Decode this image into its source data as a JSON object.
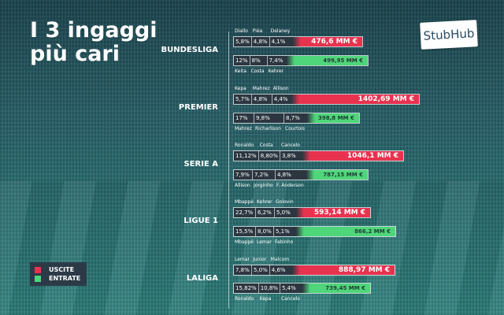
{
  "title_line1": "I 3 ingaggi",
  "title_line2": "più cari",
  "brand": "StubHub",
  "legend": {
    "out": "USCITE",
    "in": "ENTRATE",
    "out_color": "#e8334f",
    "in_color": "#4fd67a"
  },
  "leagues": [
    {
      "name": "BUNDESLIGA",
      "out": {
        "players": [
          "Diallo",
          "Piéa",
          "Delaney"
        ],
        "pcts": [
          "5,8%",
          "4,8%",
          "4,1%"
        ],
        "total": "476,6 MM €"
      },
      "in": {
        "players": [
          "Keita",
          "Costa",
          "Kehrer"
        ],
        "pcts": [
          "12%",
          "8%",
          "7,4%"
        ],
        "total": "499,95 MM €"
      }
    },
    {
      "name": "PREMIER",
      "out": {
        "players": [
          "Kepa",
          "Mahrez",
          "Allison"
        ],
        "pcts": [
          "5,7%",
          "4,8%",
          "4,4%"
        ],
        "total": "1402,69 MM €"
      },
      "in": {
        "players": [
          "Mahrez",
          "Richarlison",
          "Courtois"
        ],
        "pcts": [
          "17%",
          "9,8%",
          "8,7%"
        ],
        "total": "398,8 MM €"
      }
    },
    {
      "name": "SERIE A",
      "out": {
        "players": [
          "Ronaldo",
          "Costa",
          "Cancelo"
        ],
        "pcts": [
          "11,12%",
          "8,80%",
          "3,8%"
        ],
        "total": "1046,1 MM €"
      },
      "in": {
        "players": [
          "Allison",
          "Jorginho",
          "F. Anderson"
        ],
        "pcts": [
          "7,9%",
          "7,2%",
          "4,8%"
        ],
        "total": "787,15 MM €"
      }
    },
    {
      "name": "LIGUE 1",
      "out": {
        "players": [
          "Mbappé",
          "Kehrer",
          "Golovin"
        ],
        "pcts": [
          "22,7%",
          "6,2%",
          "5,0%"
        ],
        "total": "593,14 MM €"
      },
      "in": {
        "players": [
          "Mbappé",
          "Lemar",
          "Fabinho"
        ],
        "pcts": [
          "15,5%",
          "8,0%",
          "5,1%"
        ],
        "total": "866,2 MM €"
      }
    },
    {
      "name": "LALIGA",
      "out": {
        "players": [
          "Lemar",
          "Junior",
          "Malcom"
        ],
        "pcts": [
          "7,8%",
          "5,0%",
          "4,6%"
        ],
        "total": "888,97 MM €"
      },
      "in": {
        "players": [
          "Ronaldo",
          "Kepa",
          "Cancelo"
        ],
        "pcts": [
          "15,82%",
          "10,8%",
          "5,4%"
        ],
        "total": "739,45 MM €"
      }
    }
  ]
}
